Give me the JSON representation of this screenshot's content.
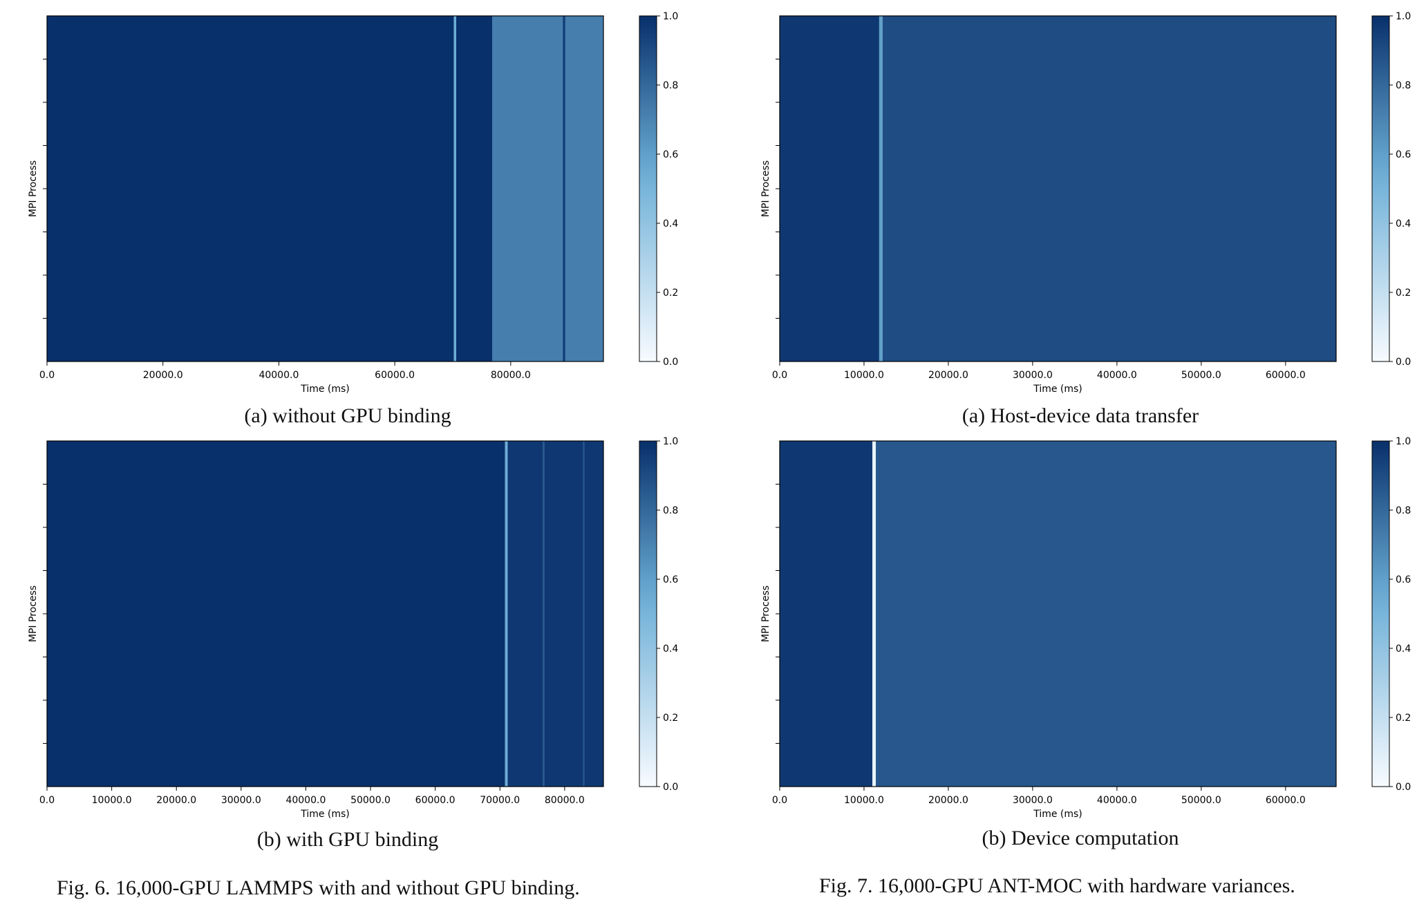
{
  "figures": [
    {
      "caption": "Fig. 6.  16,000-GPU LAMMPS with and without GPU binding."
    },
    {
      "caption": "Fig. 7.  16,000-GPU ANT-MOC with hardware variances."
    }
  ],
  "colormap": {
    "name": "Blues",
    "low": "#f7fbff",
    "high": "#08306b"
  },
  "chart_data": [
    {
      "type": "heatmap",
      "panel": "fig6a",
      "subcaption": "(a) without GPU binding",
      "xlabel": "Time (ms)",
      "ylabel": "MPI Process",
      "xlim": [
        0,
        96000
      ],
      "xticks": [
        0,
        20000,
        40000,
        60000,
        80000
      ],
      "xtick_labels": [
        "0.0",
        "20000.0",
        "40000.0",
        "60000.0",
        "80000.0"
      ],
      "colorbar_ticks": [
        "0.0",
        "0.2",
        "0.4",
        "0.6",
        "0.8",
        "1.0"
      ],
      "colorbar_range": [
        0.0,
        1.0
      ],
      "regions": [
        {
          "x": [
            0,
            70200
          ],
          "value": 1.0
        },
        {
          "x": [
            70200,
            70600
          ],
          "value": 0.55
        },
        {
          "x": [
            70600,
            76800
          ],
          "value": 1.0
        },
        {
          "x": [
            76800,
            96000
          ],
          "value": 0.72
        },
        {
          "x": [
            89000,
            89400
          ],
          "value": 0.95
        }
      ]
    },
    {
      "type": "heatmap",
      "panel": "fig6b",
      "subcaption": "(b) with GPU binding",
      "xlabel": "Time (ms)",
      "ylabel": "MPI Process",
      "xlim": [
        0,
        86000
      ],
      "xticks": [
        0,
        10000,
        20000,
        30000,
        40000,
        50000,
        60000,
        70000,
        80000
      ],
      "xtick_labels": [
        "0.0",
        "10000.0",
        "20000.0",
        "30000.0",
        "40000.0",
        "50000.0",
        "60000.0",
        "70000.0",
        "80000.0"
      ],
      "colorbar_ticks": [
        "0.0",
        "0.2",
        "0.4",
        "0.6",
        "0.8",
        "1.0"
      ],
      "colorbar_range": [
        0.0,
        1.0
      ],
      "regions": [
        {
          "x": [
            0,
            70800
          ],
          "value": 1.0
        },
        {
          "x": [
            70800,
            71200
          ],
          "value": 0.55
        },
        {
          "x": [
            71200,
            86000
          ],
          "value": 0.97
        },
        {
          "x": [
            76600,
            76900
          ],
          "value": 0.85
        },
        {
          "x": [
            82800,
            83100
          ],
          "value": 0.88
        }
      ]
    },
    {
      "type": "heatmap",
      "panel": "fig7a",
      "subcaption": "(a) Host-device data transfer",
      "xlabel": "Time (ms)",
      "ylabel": "MPI Process",
      "xlim": [
        0,
        66000
      ],
      "xticks": [
        0,
        10000,
        20000,
        30000,
        40000,
        50000,
        60000
      ],
      "xtick_labels": [
        "0.0",
        "10000.0",
        "20000.0",
        "30000.0",
        "40000.0",
        "50000.0",
        "60000.0"
      ],
      "colorbar_ticks": [
        "0.0",
        "0.2",
        "0.4",
        "0.6",
        "0.8",
        "1.0"
      ],
      "colorbar_range": [
        0.0,
        1.0
      ],
      "regions": [
        {
          "x": [
            0,
            11800
          ],
          "value": 0.97
        },
        {
          "x": [
            11800,
            12200
          ],
          "value": 0.6
        },
        {
          "x": [
            12200,
            66000
          ],
          "value": 0.9
        }
      ]
    },
    {
      "type": "heatmap",
      "panel": "fig7b",
      "subcaption": "(b) Device computation",
      "xlabel": "Time (ms)",
      "ylabel": "MPI Process",
      "xlim": [
        0,
        66000
      ],
      "xticks": [
        0,
        10000,
        20000,
        30000,
        40000,
        50000,
        60000
      ],
      "xtick_labels": [
        "0.0",
        "10000.0",
        "20000.0",
        "30000.0",
        "40000.0",
        "50000.0",
        "60000.0"
      ],
      "colorbar_ticks": [
        "0.0",
        "0.2",
        "0.4",
        "0.6",
        "0.8",
        "1.0"
      ],
      "colorbar_range": [
        0.0,
        1.0
      ],
      "regions": [
        {
          "x": [
            0,
            11000
          ],
          "value": 0.97
        },
        {
          "x": [
            11000,
            11400
          ],
          "value": 0.05
        },
        {
          "x": [
            11400,
            66000
          ],
          "value": 0.86
        }
      ]
    }
  ]
}
